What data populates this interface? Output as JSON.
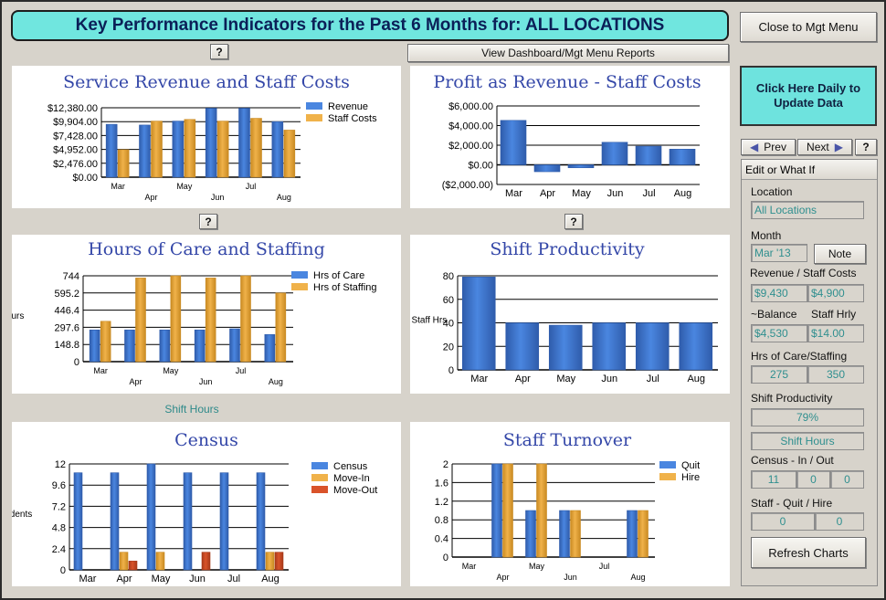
{
  "header": {
    "title": "Key Performance Indicators for the Past 6 Months for: ALL LOCATIONS",
    "close_label": "Close to Mgt Menu",
    "reports_label": "View Dashboard/Mgt Menu Reports",
    "help_label": "?",
    "update_label": "Click Here Daily to Update Data"
  },
  "colors": {
    "blue": "#4a86e0",
    "orange": "#f0b24a",
    "red": "#d9532a",
    "accent": "#70e6df"
  },
  "shift_hours_link": "Shift Hours",
  "side": {
    "prev_label": "Prev",
    "next_label": "Next",
    "help_label": "?",
    "tab_label": "Edit or What If",
    "location_label": "Location",
    "location_value": "All Locations",
    "month_label": "Month",
    "month_value": "Mar '13",
    "note_label": "Note",
    "rev_staff_label": "Revenue / Staff Costs",
    "revenue_value": "$9,430",
    "staff_value": "$4,900",
    "balance_label": "~Balance",
    "staff_hrly_label": "Staff Hrly",
    "balance_value": "$4,530",
    "hrly_value": "$14.00",
    "hours_label": "Hrs of Care/Staffing",
    "hrs_care_value": "275",
    "hrs_staff_value": "350",
    "productivity_label": "Shift Productivity",
    "productivity_value": "79%",
    "shift_hours_btn": "Shift Hours",
    "census_label": "Census - In / Out",
    "census_value": "11",
    "in_value": "0",
    "out_value": "0",
    "turnover_label": "Staff - Quit / Hire",
    "quit_value": "0",
    "hire_value": "0",
    "refresh_label": "Refresh Charts"
  },
  "chart_data": [
    {
      "type": "bar",
      "title": "Service Revenue and Staff Costs",
      "categories": [
        "Mar",
        "Apr",
        "May",
        "Jun",
        "Jul",
        "Aug"
      ],
      "yticks": [
        "$0.00",
        "$2,476.00",
        "$4,952.00",
        "$7,428.00",
        "$9,904.00",
        "$12,380.00"
      ],
      "ylim": [
        0,
        12380
      ],
      "series": [
        {
          "name": "Revenue",
          "values": [
            9430,
            9300,
            10000,
            12300,
            12300,
            9900
          ]
        },
        {
          "name": "Staff Costs",
          "values": [
            4900,
            10000,
            10300,
            10000,
            10500,
            8400
          ]
        }
      ],
      "legend": "top-right",
      "grid": true
    },
    {
      "type": "bar",
      "title": "Profit as Revenue - Staff Costs",
      "categories": [
        "Mar",
        "Apr",
        "May",
        "Jun",
        "Jul",
        "Aug"
      ],
      "yticks": [
        "($2,000.00)",
        "$0.00",
        "$2,000.00",
        "$4,000.00",
        "$6,000.00"
      ],
      "ylim": [
        -2000,
        6000
      ],
      "series": [
        {
          "values": [
            4530,
            -700,
            -300,
            2300,
            1900,
            1600
          ]
        }
      ],
      "grid": true
    },
    {
      "type": "bar",
      "title": "Hours of Care and Staffing",
      "ylabel": "Hours",
      "categories": [
        "Mar",
        "Apr",
        "May",
        "Jun",
        "Jul",
        "Aug"
      ],
      "yticks": [
        "0",
        "148.8",
        "297.6",
        "446.4",
        "595.2",
        "744"
      ],
      "ylim": [
        0,
        744
      ],
      "series": [
        {
          "name": "Hrs of Care",
          "values": [
            275,
            275,
            275,
            275,
            285,
            235
          ]
        },
        {
          "name": "Hrs of Staffing",
          "values": [
            350,
            725,
            744,
            725,
            744,
            595
          ]
        }
      ],
      "legend": "top-right",
      "grid": true
    },
    {
      "type": "bar",
      "title": "Shift Productivity",
      "ylabel": "% Care / Staff Hrs",
      "categories": [
        "Mar",
        "Apr",
        "May",
        "Jun",
        "Jul",
        "Aug"
      ],
      "yticks": [
        "0",
        "20",
        "40",
        "60",
        "80"
      ],
      "ylim": [
        0,
        80
      ],
      "series": [
        {
          "values": [
            79,
            40,
            38,
            40,
            40,
            40
          ]
        }
      ],
      "grid": true
    },
    {
      "type": "bar",
      "title": "Census",
      "ylabel": "Residents",
      "categories": [
        "Mar",
        "Apr",
        "May",
        "Jun",
        "Jul",
        "Aug"
      ],
      "yticks": [
        "0",
        "2.4",
        "4.8",
        "7.2",
        "9.6",
        "12"
      ],
      "ylim": [
        0,
        12
      ],
      "series": [
        {
          "name": "Census",
          "values": [
            11,
            11,
            12,
            11,
            11,
            11
          ]
        },
        {
          "name": "Move-In",
          "values": [
            0,
            2,
            2,
            0,
            0,
            2
          ]
        },
        {
          "name": "Move-Out",
          "values": [
            0,
            1,
            0,
            2,
            0,
            2
          ]
        }
      ],
      "legend": "top-right",
      "grid": true
    },
    {
      "type": "bar",
      "title": "Staff Turnover",
      "categories": [
        "Mar",
        "Apr",
        "May",
        "Jun",
        "Jul",
        "Aug"
      ],
      "yticks": [
        "0",
        "0.4",
        "0.8",
        "1.2",
        "1.6",
        "2"
      ],
      "ylim": [
        0,
        2
      ],
      "series": [
        {
          "name": "Quit",
          "values": [
            0,
            2,
            1,
            1,
            0,
            1
          ]
        },
        {
          "name": "Hire",
          "values": [
            0,
            2,
            2,
            1,
            0,
            1
          ]
        }
      ],
      "legend": "top-right",
      "grid": true
    }
  ]
}
